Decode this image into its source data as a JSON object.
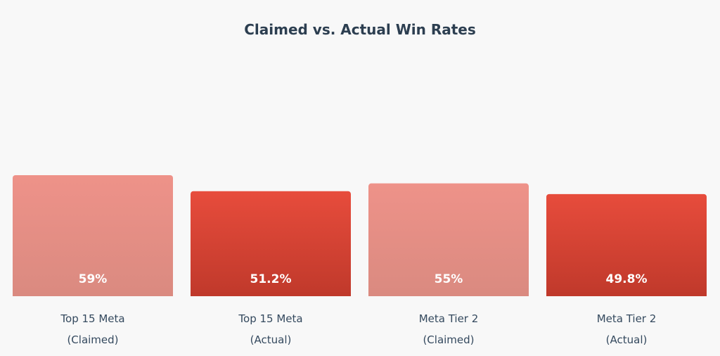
{
  "chart_data": {
    "type": "bar",
    "title": "Claimed vs. Actual Win Rates",
    "xlabel": "",
    "ylabel": "",
    "categories": [
      [
        "Top 15 Meta",
        "(Claimed)"
      ],
      [
        "Top 15 Meta",
        "(Actual)"
      ],
      [
        "Meta Tier 2",
        "(Claimed)"
      ],
      [
        "Meta Tier 2",
        "(Actual)"
      ]
    ],
    "values": [
      59,
      51.2,
      55,
      49.8
    ],
    "value_labels": [
      "59%",
      "51.2%",
      "55%",
      "49.8%"
    ],
    "bar_kind": [
      "claimed",
      "actual",
      "claimed",
      "actual"
    ],
    "colors": {
      "claimed_top": "#ee9289",
      "claimed_bottom": "#da8a80",
      "actual_top": "#e74c3c",
      "actual_bottom": "#c0392b"
    },
    "grid": false,
    "legend": "none"
  }
}
